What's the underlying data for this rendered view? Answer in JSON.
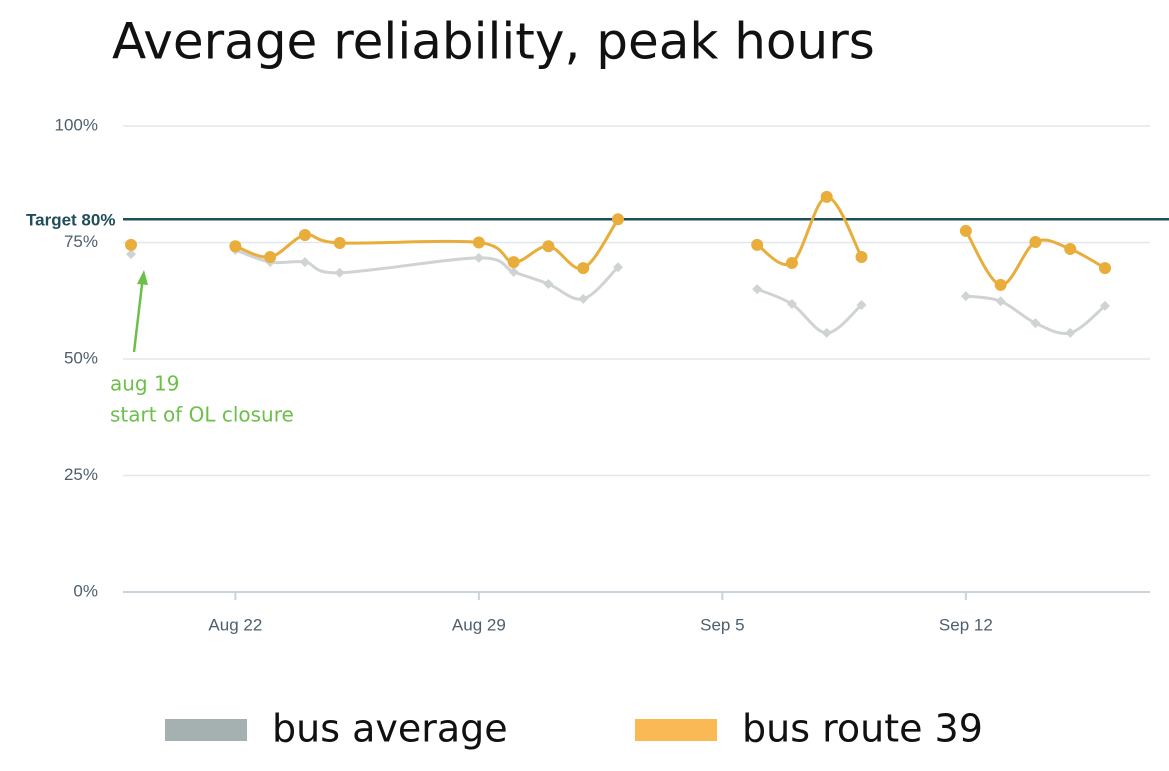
{
  "chart_data": {
    "type": "line",
    "title": "Average reliability, peak hours",
    "x": [
      "Aug 19",
      "Aug 20",
      "Aug 22",
      "Aug 23",
      "Aug 24",
      "Aug 25",
      "Aug 29",
      "Aug 30",
      "Aug 31",
      "Sep 1",
      "Sep 2",
      "Sep 3",
      "Sep 6",
      "Sep 7",
      "Sep 8",
      "Sep 9",
      "Sep 10",
      "Sep 12",
      "Sep 13",
      "Sep 14",
      "Sep 15",
      "Sep 16"
    ],
    "series": [
      {
        "name": "bus average",
        "color": "#a5b0b0",
        "values": [
          72.5,
          null,
          73.4,
          70.8,
          70.8,
          68.5,
          71.7,
          68.7,
          66.1,
          62.9,
          69.7,
          null,
          65.0,
          61.8,
          55.6,
          61.6,
          null,
          63.5,
          62.4,
          57.7,
          55.6,
          61.4
        ]
      },
      {
        "name": "bus route 39",
        "color": "#e8ad3b",
        "values": [
          74.5,
          null,
          74.2,
          71.9,
          76.6,
          74.9,
          75.0,
          70.8,
          74.2,
          69.5,
          80.0,
          null,
          74.5,
          70.6,
          84.8,
          71.9,
          null,
          77.5,
          65.9,
          75.1,
          73.6,
          69.5
        ]
      }
    ],
    "ylim": [
      0,
      100
    ],
    "yticks": [
      {
        "value": 0,
        "label": "0%"
      },
      {
        "value": 25,
        "label": "25%"
      },
      {
        "value": 50,
        "label": "50%"
      },
      {
        "value": 75,
        "label": "75%"
      },
      {
        "value": 100,
        "label": "100%"
      }
    ],
    "xticks": [
      "Aug 22",
      "Aug 29",
      "Sep 5",
      "Sep 12"
    ],
    "grid": true,
    "target": {
      "label": "Target 80%",
      "value": 80
    },
    "annotation": [
      "aug 19",
      "start of OL closure"
    ]
  }
}
